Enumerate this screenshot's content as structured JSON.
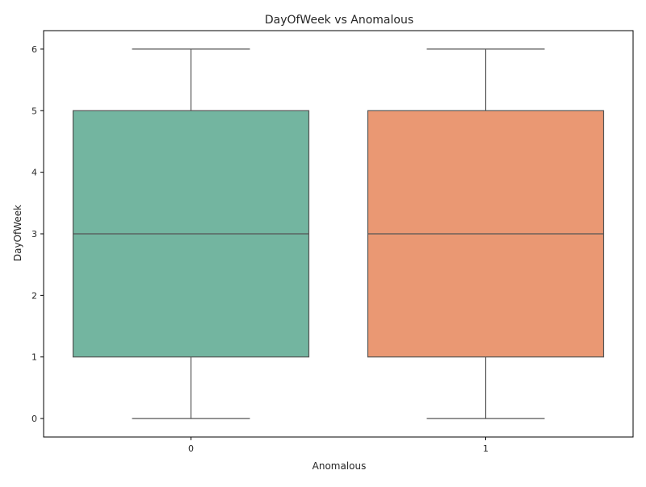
{
  "chart_data": {
    "type": "box",
    "title": "DayOfWeek vs Anomalous",
    "xlabel": "Anomalous",
    "ylabel": "DayOfWeek",
    "categories": [
      "0",
      "1"
    ],
    "ylim": [
      -0.3,
      6.3
    ],
    "yticks": [
      "0",
      "1",
      "2",
      "3",
      "4",
      "5",
      "6"
    ],
    "grid": false,
    "boxes": [
      {
        "category": "0",
        "whisker_low": 0,
        "q1": 1,
        "median": 3,
        "q3": 5,
        "whisker_high": 6,
        "color": "#73b5a0"
      },
      {
        "category": "1",
        "whisker_low": 0,
        "q1": 1,
        "median": 3,
        "q3": 5,
        "whisker_high": 6,
        "color": "#ea9873"
      }
    ],
    "line_color": "#555555"
  }
}
